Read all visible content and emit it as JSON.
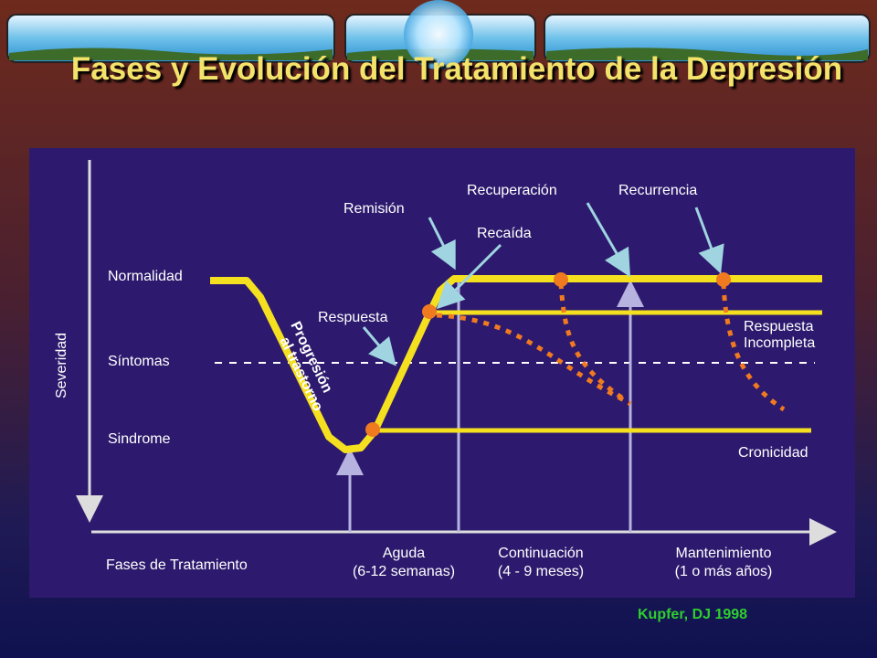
{
  "title": "Fases y Evolución del Tratamiento de la Depresión",
  "diagram": {
    "y_axis_label": "Severidad",
    "levels": [
      "Normalidad",
      "Síntomas",
      "Sindrome"
    ],
    "progression_label": [
      "Progresión",
      "al trastorno"
    ],
    "annotations": {
      "remission": "Remisión",
      "recovery": "Recuperación",
      "recurrence": "Recurrencia",
      "relapse": "Recaída",
      "response": "Respuesta"
    },
    "outcomes": {
      "incomplete_response": [
        "Respuesta",
        "Incompleta"
      ],
      "chronicity": "Cronicidad"
    },
    "x_axis_label": "Fases de Tratamiento",
    "phases": [
      {
        "name": "Aguda",
        "duration": "(6-12 semanas)"
      },
      {
        "name": "Continuación",
        "duration": "(4 - 9 meses)"
      },
      {
        "name": "Mantenimiento",
        "duration": "(1 o más años)"
      }
    ]
  },
  "citation": "Kupfer, DJ 1998"
}
